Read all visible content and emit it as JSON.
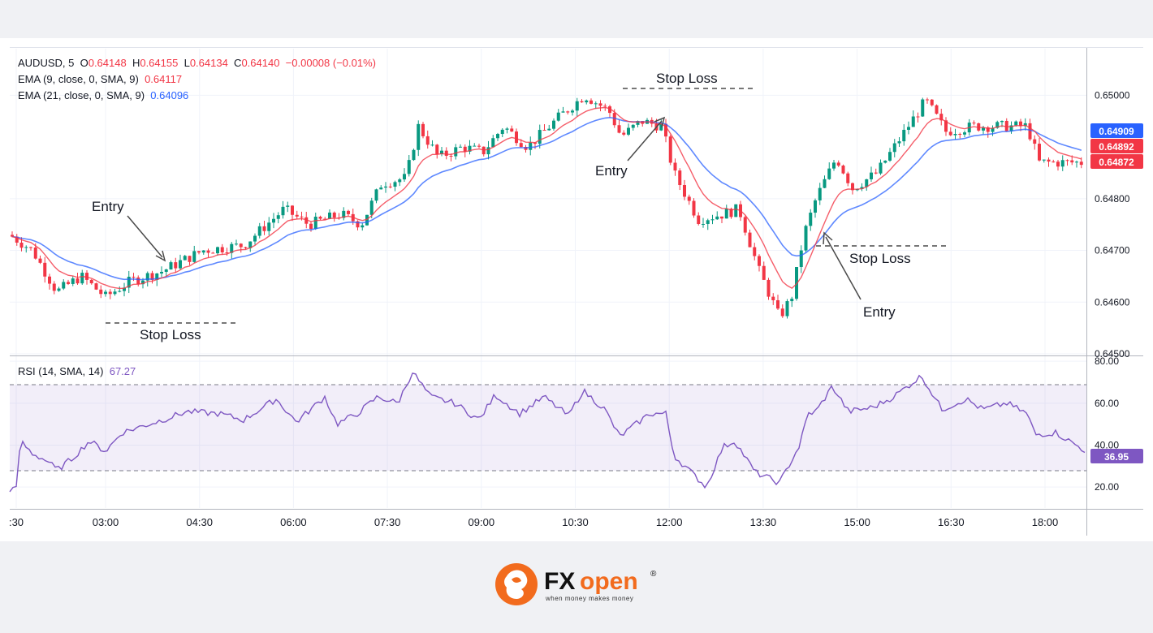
{
  "chart_data": {
    "type": "candlestick",
    "symbol_line": {
      "symbol": "AUDUSD, 5",
      "o_label": "O",
      "o": "0.64148",
      "h_label": "H",
      "h": "0.64155",
      "l_label": "L",
      "l": "0.64134",
      "c_label": "C",
      "c": "0.64140",
      "change": "−0.00008 (−0.01%)"
    },
    "ema_fast": {
      "label": "EMA (9, close, 0, SMA, 9)",
      "value": "0.64117",
      "color": "#f23645"
    },
    "ema_slow": {
      "label": "EMA (21, close, 0, SMA, 9)",
      "value": "0.64096",
      "color": "#2962ff"
    },
    "rsi": {
      "label": "RSI (14, SMA, 14)",
      "value": "67.27",
      "current": "36.95",
      "color": "#7e57c2",
      "band": [
        30,
        70
      ],
      "ylim": [
        10,
        82
      ],
      "ticks": [
        "80.00",
        "60.00",
        "40.00",
        "20.00"
      ]
    },
    "price_ylim": [
      0.645,
      0.6509
    ],
    "price_ticks": [
      "0.65000",
      "0.64800",
      "0.64700",
      "0.64600",
      "0.64500"
    ],
    "price_labels": [
      {
        "text": "0.64909",
        "color": "#2962ff"
      },
      {
        "text": "0.64892",
        "color": "#f23645"
      },
      {
        "text": "0.64872",
        "color": "#f23645"
      }
    ],
    "x_ticks": [
      ":30",
      "03:00",
      "04:30",
      "06:00",
      "07:30",
      "09:00",
      "10:30",
      "12:00",
      "13:30",
      "15:00",
      "16:30",
      "18:00"
    ],
    "colors": {
      "up": "#089981",
      "down": "#f23645",
      "grid": "#f0f3fa"
    },
    "annotations": [
      {
        "text": "Entry"
      },
      {
        "text": "Stop Loss"
      },
      {
        "text": "Stop Loss"
      },
      {
        "text": "Entry"
      },
      {
        "text": "Stop Loss"
      },
      {
        "text": "Entry"
      }
    ]
  },
  "brand": {
    "name_fx": "FX",
    "name_open": "open",
    "tagline": "when money makes money",
    "registered": "®"
  }
}
